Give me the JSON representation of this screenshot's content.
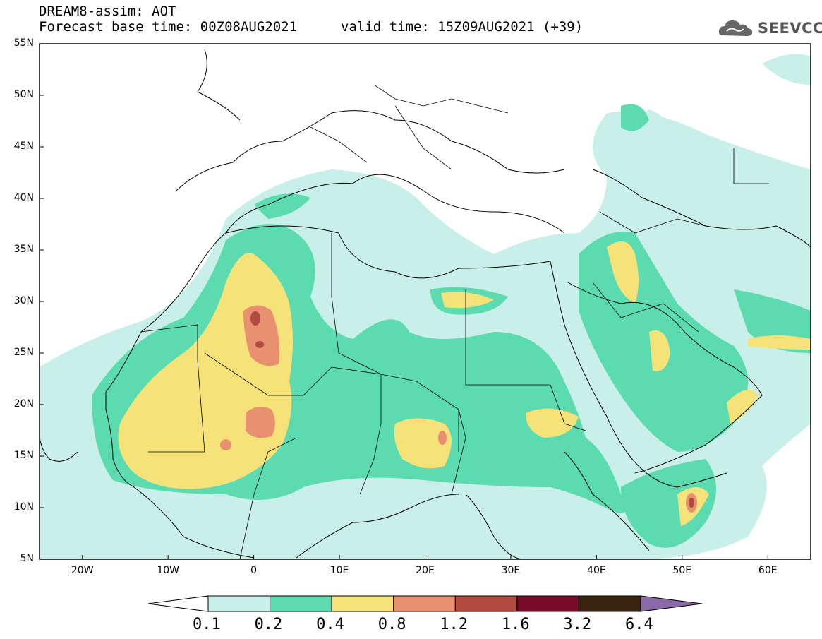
{
  "header": {
    "model_line": "DREAM8-assim: AOT",
    "base_time_line": "Forecast base time: 00Z08AUG2021",
    "valid_time_line": "valid time: 15Z09AUG2021 (+39)"
  },
  "logo": {
    "text": "SEEVCCC",
    "icon": "cloud-icon"
  },
  "map": {
    "variable": "AOT",
    "lat_range": [
      5,
      55
    ],
    "lon_range": [
      -25,
      65
    ],
    "lat_labels": [
      "55N",
      "50N",
      "45N",
      "40N",
      "35N",
      "30N",
      "25N",
      "20N",
      "15N",
      "10N",
      "5N"
    ],
    "lon_labels": [
      "20W",
      "10W",
      "0",
      "10E",
      "20E",
      "30E",
      "40E",
      "50E",
      "60E"
    ]
  },
  "colorbar": {
    "labels": [
      "0.1",
      "0.2",
      "0.4",
      "0.8",
      "1.2",
      "1.6",
      "3.2",
      "6.4"
    ],
    "colors": [
      "#c8f0e8",
      "#5ddbb0",
      "#f5e37a",
      "#e89070",
      "#b0493e",
      "#7a0a2a",
      "#3a2410",
      "#8a6aa8"
    ]
  }
}
